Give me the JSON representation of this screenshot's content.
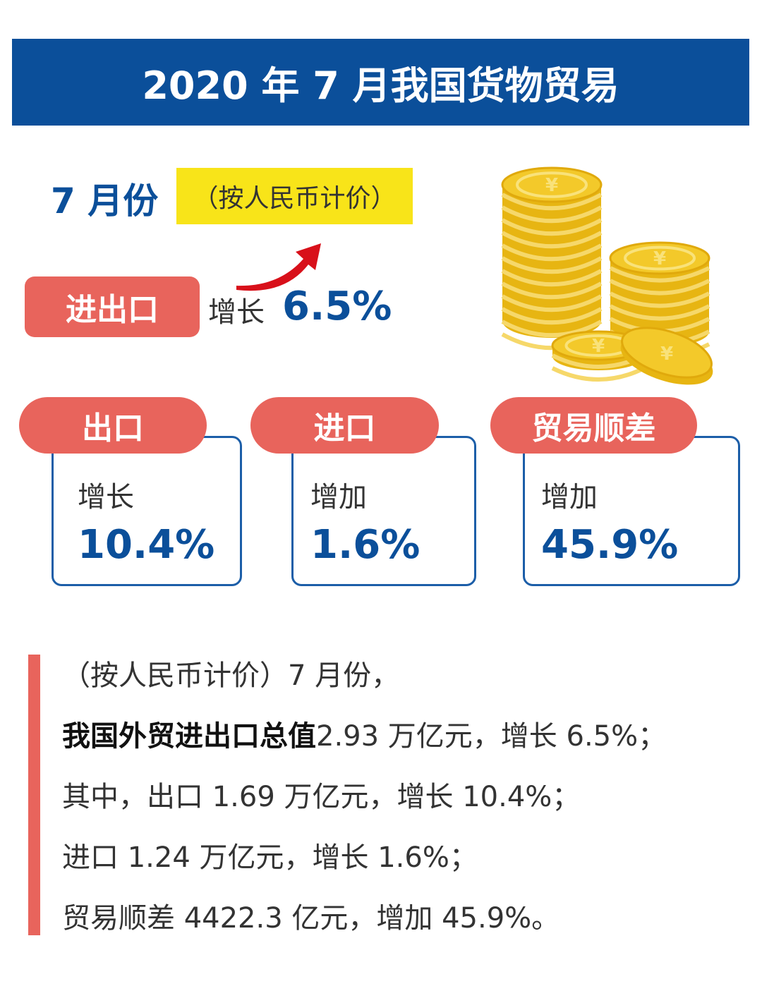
{
  "header": {
    "title": "2020 年 7 月我国货物贸易"
  },
  "period": {
    "label": "7 月份",
    "note": "（按人民币计价）"
  },
  "total": {
    "label": "进出口",
    "verb": "增长",
    "value": "6.5%"
  },
  "cards": [
    {
      "label": "出口",
      "verb": "增长",
      "value": "10.4%"
    },
    {
      "label": "进口",
      "verb": "增加",
      "value": "1.6%"
    },
    {
      "label": "贸易顺差",
      "verb": "增加",
      "value": "45.9%"
    }
  ],
  "summary": {
    "lines": [
      {
        "text": "（按人民币计价）7 月份，"
      },
      {
        "strong": "我国外贸进出口总值",
        "text": "2.93 万亿元，增长 6.5%；"
      },
      {
        "text": "其中，出口 1.69 万亿元，增长 10.4%；"
      },
      {
        "text": "进口 1.24 万亿元，增长 1.6%；"
      },
      {
        "text": "贸易顺差 4422.3 亿元，增加 45.9%。"
      }
    ]
  }
}
